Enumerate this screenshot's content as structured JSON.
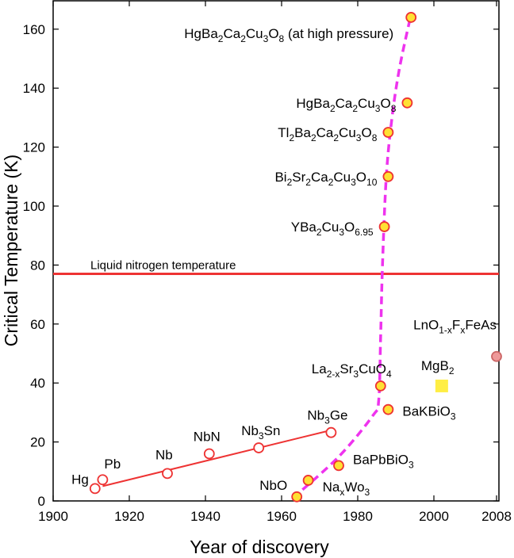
{
  "chart_data": {
    "type": "scatter",
    "xlabel": "Year of discovery",
    "ylabel": "Critical Temperature (K)",
    "xlim": [
      1900,
      2008
    ],
    "ylim": [
      0,
      170
    ],
    "x_ticks": [
      "1900",
      "1920",
      "1940",
      "1960",
      "1980",
      "2000",
      "2008"
    ],
    "y_ticks": [
      "0",
      "20",
      "40",
      "60",
      "80",
      "100",
      "120",
      "140",
      "160"
    ],
    "reference_line": {
      "label": "Liquid nitrogen temperature",
      "y": 77,
      "color": "#ee3333"
    },
    "series": [
      {
        "marker": "open-circle",
        "color": "#ee3333",
        "points": [
          {
            "label": "Hg",
            "x": 1911,
            "y": 4.2
          },
          {
            "label": "Pb",
            "x": 1913,
            "y": 7.2
          },
          {
            "label": "Nb",
            "x": 1930,
            "y": 9.3
          },
          {
            "label": "NbN",
            "x": 1941,
            "y": 16
          },
          {
            "label": "Nb3Sn",
            "x": 1954,
            "y": 18
          },
          {
            "label": "Nb3Ge",
            "x": 1973,
            "y": 23.2
          }
        ]
      },
      {
        "marker": "filled-circle",
        "color": "#ffe033",
        "edge": "#ee3333",
        "points": [
          {
            "label": "NbO",
            "x": 1964,
            "y": 1.4
          },
          {
            "label": "NaxWo3",
            "x": 1967,
            "y": 7
          },
          {
            "label": "BaPbBiO3",
            "x": 1975,
            "y": 12
          },
          {
            "label": "La2-xSr3CuO4",
            "x": 1986,
            "y": 39
          },
          {
            "label": "BaKBiO3",
            "x": 1988,
            "y": 31
          },
          {
            "label": "YBa2Cu3O6.95",
            "x": 1987,
            "y": 93
          },
          {
            "label": "Bi2Sr2Ca2Cu3O10",
            "x": 1988,
            "y": 110
          },
          {
            "label": "Tl2Ba2Ca2Cu3O8",
            "x": 1988,
            "y": 125
          },
          {
            "label": "HgBa2Ca2Cu3O8",
            "x": 1993,
            "y": 135
          },
          {
            "label": "HgBa2Ca2Cu3O8 (at high pressure)",
            "x": 1994,
            "y": 164
          }
        ]
      },
      {
        "marker": "filled-square",
        "color": "#ffee44",
        "points": [
          {
            "label": "MgB2",
            "x": 2001,
            "y": 39
          }
        ]
      },
      {
        "marker": "filled-circle",
        "color": "#ee9999",
        "edge": "#cc6666",
        "points": [
          {
            "label": "LnO1-xFxFeAs",
            "x": 2008,
            "y": 49
          }
        ]
      }
    ],
    "trend_lines": [
      {
        "style": "solid",
        "color": "#ee3333",
        "points": [
          [
            1913,
            5
          ],
          [
            1973,
            24
          ]
        ]
      },
      {
        "style": "dashed",
        "color": "#ee33ee",
        "points": [
          [
            1963,
            1
          ],
          [
            1975,
            15
          ],
          [
            1984,
            29
          ],
          [
            1985.5,
            34
          ],
          [
            1986,
            55
          ],
          [
            1986.5,
            80
          ],
          [
            1987.5,
            110
          ],
          [
            1989,
            130
          ],
          [
            1991,
            147
          ],
          [
            1994,
            165
          ]
        ]
      }
    ],
    "grid": false,
    "legend": "none"
  }
}
